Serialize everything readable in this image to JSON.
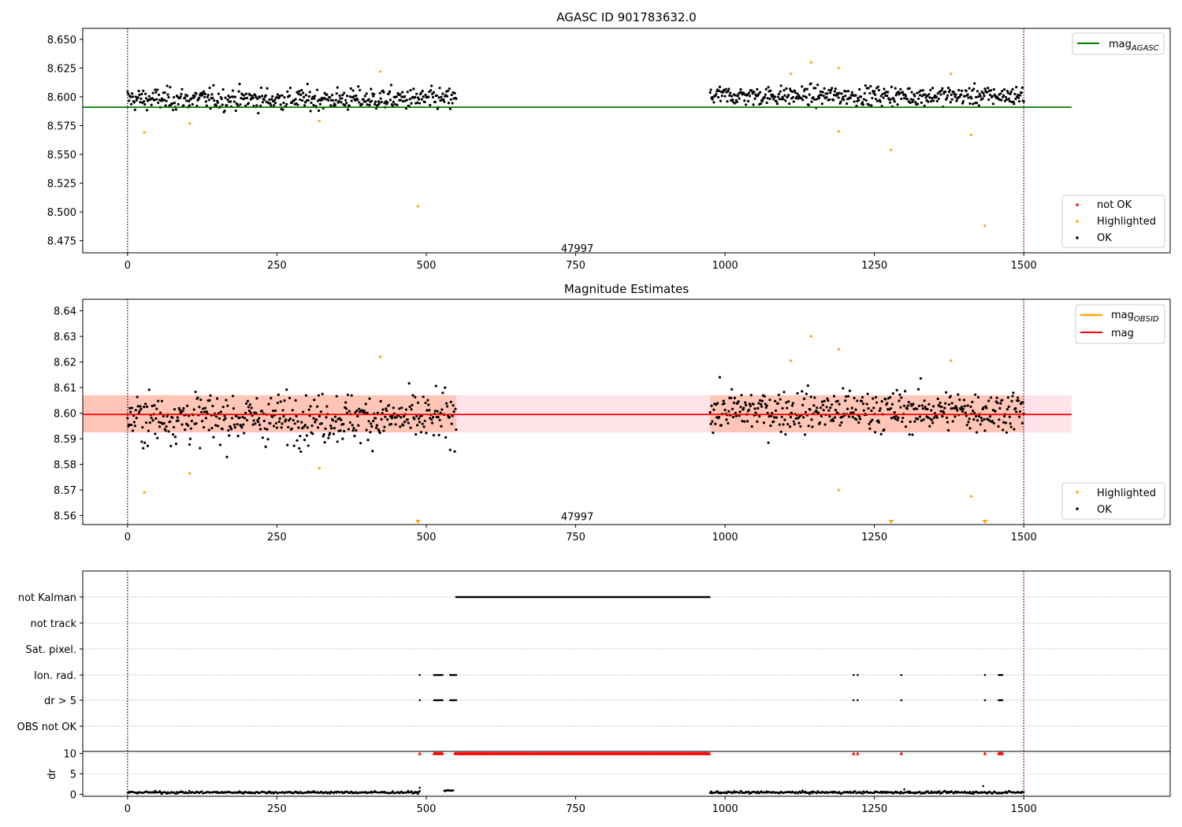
{
  "chart_data": [
    {
      "type": "scatter",
      "title": "AGASC ID 901783632.0",
      "xlim": [
        -75,
        1745
      ],
      "ylim": [
        8.4645,
        8.6595
      ],
      "xticks": [
        0,
        250,
        500,
        750,
        1000,
        1250,
        1500
      ],
      "yticks": [
        8.475,
        8.5,
        8.525,
        8.55,
        8.575,
        8.6,
        8.625,
        8.65
      ],
      "vlines": [
        0,
        1500
      ],
      "annotation": {
        "text": "47997",
        "x": 750,
        "y": 8.466
      },
      "hline": {
        "name": "mag",
        "subscript": "AGASC",
        "value": 8.591,
        "x_range": [
          -75,
          1580
        ],
        "color": "#008000"
      },
      "legend_upper": [
        {
          "label": "mag",
          "subscript": "AGASC",
          "color": "#008000"
        }
      ],
      "legend_lower": [
        {
          "label": "not OK",
          "color": "#ff0000"
        },
        {
          "label": "Highlighted",
          "color": "#ffa500"
        },
        {
          "label": "OK",
          "color": "#000000"
        }
      ],
      "segments": [
        {
          "x_range": [
            0,
            550
          ],
          "mean": 8.598,
          "spread": 0.0075
        },
        {
          "x_range": [
            975,
            1500
          ],
          "mean": 8.601,
          "spread": 0.0065
        }
      ],
      "highlighted": [
        [
          28,
          8.569
        ],
        [
          104,
          8.577
        ],
        [
          321,
          8.579
        ],
        [
          423,
          8.622
        ],
        [
          486,
          8.505
        ],
        [
          1110,
          8.62
        ],
        [
          1144,
          8.63
        ],
        [
          1190,
          8.625
        ],
        [
          1190,
          8.57
        ],
        [
          1278,
          8.554
        ],
        [
          1378,
          8.62
        ],
        [
          1412,
          8.567
        ],
        [
          1435,
          8.488
        ]
      ],
      "not_ok": []
    },
    {
      "type": "scatter",
      "title": "Magnitude Estimates",
      "xlim": [
        -75,
        1745
      ],
      "ylim": [
        8.5565,
        8.6445
      ],
      "xticks": [
        0,
        250,
        500,
        750,
        1000,
        1250,
        1500
      ],
      "yticks": [
        8.56,
        8.57,
        8.58,
        8.59,
        8.6,
        8.61,
        8.62,
        8.63,
        8.64
      ],
      "vlines": [
        0,
        1500
      ],
      "annotation": {
        "text": "47997",
        "x": 750,
        "y": 8.5585
      },
      "mag_line": {
        "value": 8.5995,
        "x_range": [
          -75,
          1580
        ],
        "color": "#ff0000"
      },
      "mag_band": {
        "lo": 8.5925,
        "hi": 8.607,
        "x_range": [
          -75,
          1580
        ],
        "color": "#ffc0cb"
      },
      "obsid_band": {
        "lo": 8.5925,
        "hi": 8.607,
        "x_ranges": [
          [
            -75,
            550
          ],
          [
            975,
            1500
          ]
        ],
        "color": "#ffa07a"
      },
      "legend_upper": [
        {
          "label": "mag",
          "subscript": "OBSID",
          "color": "#ffa500"
        },
        {
          "label": "mag",
          "subscript": "",
          "color": "#ff0000"
        }
      ],
      "legend_lower": [
        {
          "label": "Highlighted",
          "color": "#ffa500"
        },
        {
          "label": "OK",
          "color": "#000000"
        }
      ],
      "segments": [
        {
          "x_range": [
            0,
            550
          ],
          "mean": 8.598,
          "spread": 0.0075
        },
        {
          "x_range": [
            975,
            1500
          ],
          "mean": 8.601,
          "spread": 0.0065
        }
      ],
      "highlighted": [
        [
          28,
          8.569
        ],
        [
          104,
          8.5765
        ],
        [
          321,
          8.5785
        ],
        [
          423,
          8.622
        ],
        [
          1110,
          8.6205
        ],
        [
          1144,
          8.63
        ],
        [
          1190,
          8.625
        ],
        [
          1190,
          8.57
        ],
        [
          1378,
          8.6205
        ],
        [
          1412,
          8.5675
        ]
      ],
      "below_range": [
        486,
        1278,
        1435
      ]
    },
    {
      "type": "scatter",
      "xlim": [
        -75,
        1745
      ],
      "xticks": [
        0,
        250,
        500,
        750,
        1000,
        1250,
        1500
      ],
      "vlines": [
        0,
        1500
      ],
      "flag_labels": [
        "not Kalman",
        "not track",
        "Sat. pixel.",
        "Ion. rad.",
        "dr > 5",
        "OBS not OK"
      ],
      "flags": {
        "not Kalman": [
          [
            550,
            975
          ]
        ],
        "not track": [],
        "Sat. pixel.": [],
        "Ion. rad.": [
          [
            489,
            489
          ],
          [
            513,
            527
          ],
          [
            540,
            550
          ],
          [
            1215,
            1215
          ],
          [
            1222,
            1222
          ],
          [
            1295,
            1295
          ],
          [
            1435,
            1435
          ],
          [
            1458,
            1465
          ]
        ],
        "dr > 5": [
          [
            489,
            489
          ],
          [
            513,
            527
          ],
          [
            540,
            550
          ],
          [
            1215,
            1215
          ],
          [
            1222,
            1222
          ],
          [
            1295,
            1295
          ],
          [
            1435,
            1435
          ],
          [
            1458,
            1465
          ]
        ],
        "OBS not OK": []
      },
      "dr_ylabel": "dr",
      "dr_yticks": [
        0,
        5,
        10
      ],
      "dr_ylim": [
        -0.5,
        10.5
      ],
      "dr_clipped": [
        [
          489,
          489
        ],
        [
          513,
          527
        ],
        [
          548,
          975
        ],
        [
          1215,
          1215
        ],
        [
          1222,
          1222
        ],
        [
          1295,
          1295
        ],
        [
          1435,
          1435
        ],
        [
          1458,
          1465
        ]
      ],
      "dr_segments": [
        {
          "x_range": [
            0,
            490
          ],
          "mean": 0.45,
          "spread": 0.4
        },
        {
          "x_range": [
            530,
            545
          ],
          "mean": 0.9,
          "spread": 0.2
        },
        {
          "x_range": [
            975,
            1500
          ],
          "mean": 0.45,
          "spread": 0.4
        }
      ],
      "dr_extra": [
        [
          489,
          1.6
        ],
        [
          1432,
          2.0
        ],
        [
          1300,
          1.2
        ]
      ]
    }
  ]
}
